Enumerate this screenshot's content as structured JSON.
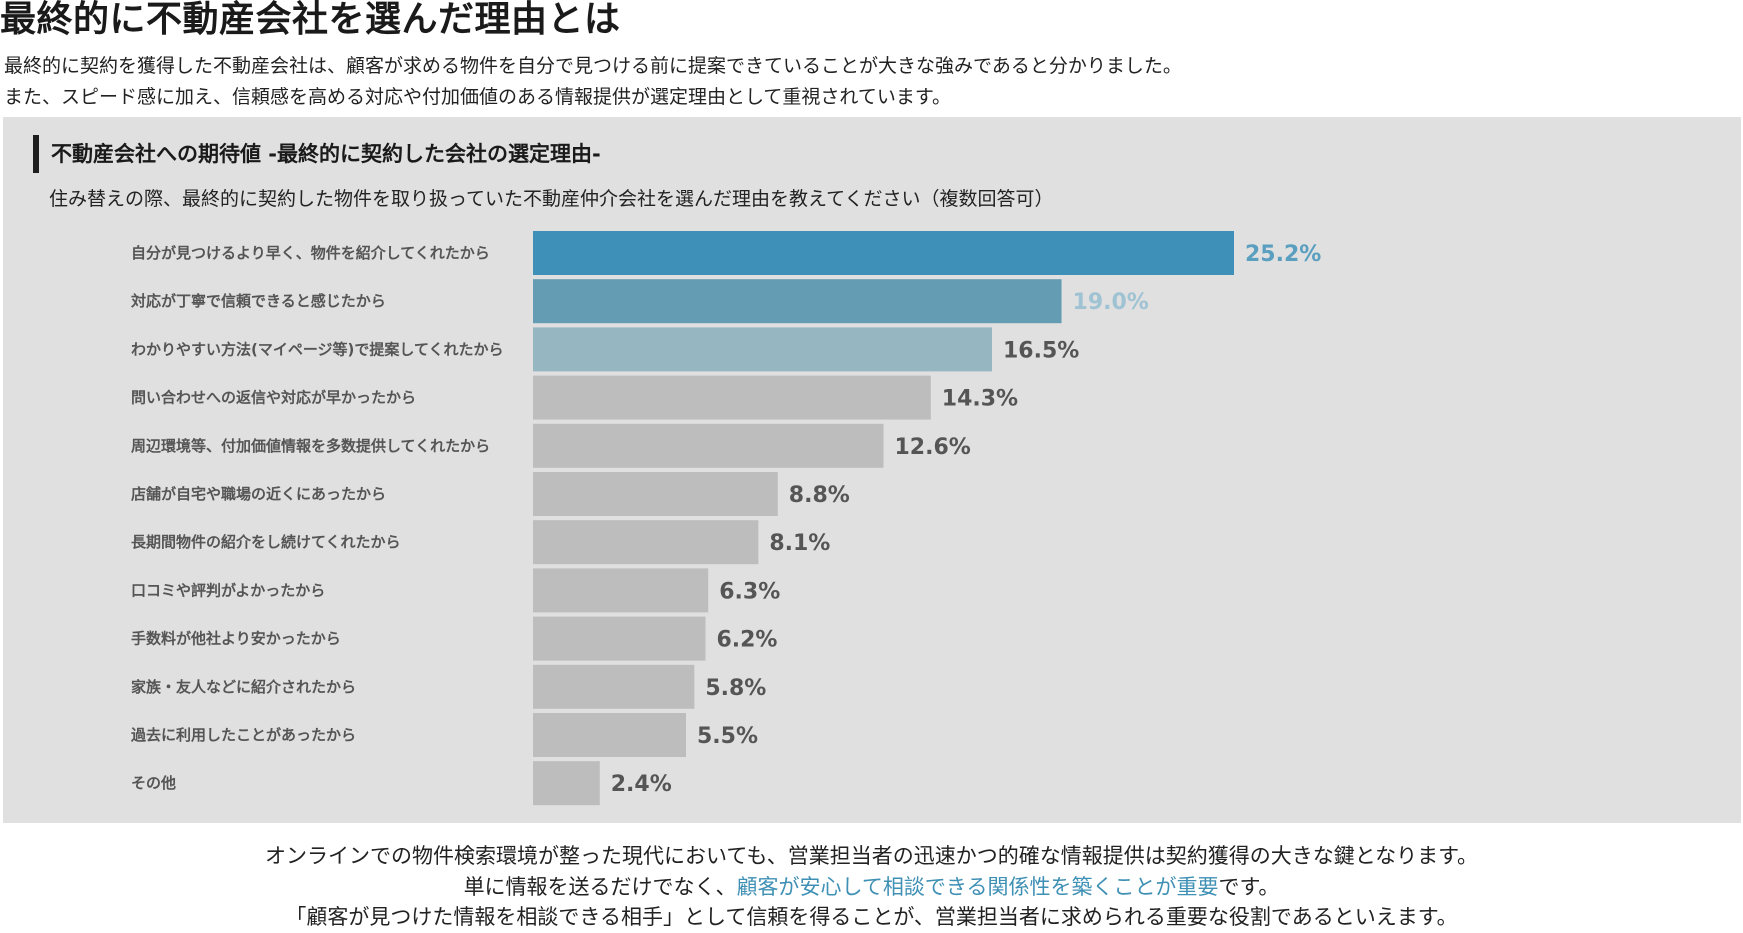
{
  "title": "最終的に不動産会社を選んだ理由とは",
  "intro": [
    "最終的に契約を獲得した不動産会社は、顧客が求める物件を自分で見つける前に提案できていることが大きな強みであると分かりました。",
    "また、スピード感に加え、信頼感を高める対応や付加価値のある情報提供が選定理由として重視されています。"
  ],
  "panel": {
    "title": "不動産会社への期待値 -最終的に契約した会社の選定理由-",
    "question": "住み替えの際、最終的に契約した物件を取り扱っていた不動産仲介会社を選んだ理由を教えてください（複数回答可）"
  },
  "chart_data": {
    "type": "bar",
    "orientation": "horizontal",
    "categories": [
      "自分が見つけるより早く、物件を紹介してくれたから",
      "対応が丁寧で信頼できると感じたから",
      "わかりやすい方法(マイページ等)で提案してくれたから",
      "問い合わせへの返信や対応が早かったから",
      "周辺環境等、付加価値情報を多数提供してくれたから",
      "店舗が自宅や職場の近くにあったから",
      "長期間物件の紹介をし続けてくれたから",
      "口コミや評判がよかったから",
      "手数料が他社より安かったから",
      "家族・友人などに紹介されたから",
      "過去に利用したことがあったから",
      "その他"
    ],
    "values": [
      25.2,
      19.0,
      16.5,
      14.3,
      12.6,
      8.8,
      8.1,
      6.3,
      6.2,
      5.8,
      5.5,
      2.4
    ],
    "value_labels": [
      "25.2%",
      "19.0%",
      "16.5%",
      "14.3%",
      "12.6%",
      "8.8%",
      "8.1%",
      "6.3%",
      "6.2%",
      "5.8%",
      "5.5%",
      "2.4%"
    ],
    "bar_colors": [
      "#3f90b8",
      "#649db3",
      "#96b6c2",
      "#bdbdbd",
      "#bdbdbd",
      "#bdbdbd",
      "#bdbdbd",
      "#bdbdbd",
      "#bdbdbd",
      "#bdbdbd",
      "#bdbdbd",
      "#bdbdbd"
    ],
    "label_colors": [
      "#5a9fc0",
      "#9fc3d3",
      "#555555",
      "#555555",
      "#555555",
      "#555555",
      "#555555",
      "#555555",
      "#555555",
      "#555555",
      "#555555",
      "#555555"
    ],
    "xlim": [
      0,
      25.2
    ],
    "grid": false,
    "legend": "none"
  },
  "outro": {
    "line1": "オンラインでの物件検索環境が整った現代においても、営業担当者の迅速かつ的確な情報提供は契約獲得の大きな鍵となります。",
    "line2_prefix": "単に情報を送るだけでなく、",
    "line2_highlight": "顧客が安心して相談できる関係性を築くことが重要",
    "line2_suffix": "です。",
    "line3": "「顧客が見つけた情報を相談できる相手」として信頼を得ることが、営業担当者に求められる重要な役割であるといえます。",
    "highlight_color": "#3f90b5"
  }
}
